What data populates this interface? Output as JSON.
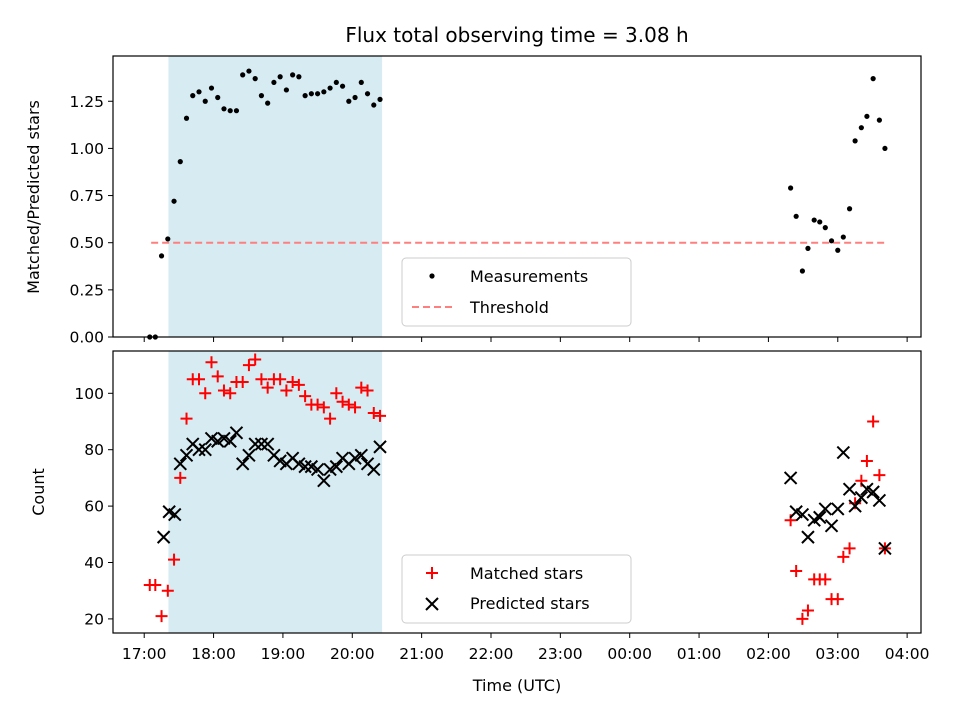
{
  "chart_data": {
    "type": "scatter",
    "title": "Flux total observing time = 3.08 h",
    "xlabel": "Time (UTC)",
    "x_unit": "hours since 17:00 UTC",
    "xlim": [
      -0.45,
      11.2
    ],
    "x_ticks": [
      {
        "value": 0,
        "label": "17:00"
      },
      {
        "value": 1,
        "label": "18:00"
      },
      {
        "value": 2,
        "label": "19:00"
      },
      {
        "value": 3,
        "label": "20:00"
      },
      {
        "value": 4,
        "label": "21:00"
      },
      {
        "value": 5,
        "label": "22:00"
      },
      {
        "value": 6,
        "label": "23:00"
      },
      {
        "value": 7,
        "label": "00:00"
      },
      {
        "value": 8,
        "label": "01:00"
      },
      {
        "value": 9,
        "label": "02:00"
      },
      {
        "value": 10,
        "label": "03:00"
      },
      {
        "value": 11,
        "label": "04:00"
      }
    ],
    "shaded_interval": [
      0.35,
      3.43
    ],
    "top_panel": {
      "ylabel": "Matched/Predicted stars",
      "ylim": [
        0,
        1.49
      ],
      "y_ticks": [
        "0.00",
        "0.25",
        "0.50",
        "0.75",
        "1.00",
        "1.25"
      ],
      "y_tick_values": [
        0,
        0.25,
        0.5,
        0.75,
        1.0,
        1.25
      ],
      "threshold": {
        "value": 0.5,
        "x_range": [
          0.1,
          10.7
        ],
        "color": "#ff7f7f"
      },
      "legend": {
        "placement": "lower center",
        "items": [
          "Measurements",
          "Threshold"
        ]
      },
      "series": [
        {
          "name": "Measurements",
          "marker": "dot",
          "color": "#000000",
          "x": [
            0.08,
            0.16,
            0.25,
            0.34,
            0.43,
            0.52,
            0.61,
            0.7,
            0.79,
            0.88,
            0.97,
            1.06,
            1.15,
            1.24,
            1.33,
            1.42,
            1.51,
            1.6,
            1.69,
            1.78,
            1.87,
            1.96,
            2.05,
            2.14,
            2.23,
            2.32,
            2.41,
            2.5,
            2.59,
            2.68,
            2.77,
            2.86,
            2.95,
            3.04,
            3.13,
            3.22,
            3.31,
            3.4,
            9.32,
            9.4,
            9.49,
            9.57,
            9.66,
            9.74,
            9.82,
            9.91,
            10.0,
            10.08,
            10.17,
            10.25,
            10.34,
            10.42,
            10.51,
            10.6,
            10.68
          ],
          "y": [
            0.0,
            0.0,
            0.43,
            0.52,
            0.72,
            0.93,
            1.16,
            1.28,
            1.3,
            1.25,
            1.32,
            1.27,
            1.21,
            1.2,
            1.2,
            1.39,
            1.41,
            1.37,
            1.28,
            1.24,
            1.35,
            1.38,
            1.31,
            1.39,
            1.38,
            1.28,
            1.29,
            1.29,
            1.3,
            1.32,
            1.35,
            1.33,
            1.25,
            1.27,
            1.35,
            1.29,
            1.23,
            1.26,
            0.79,
            0.64,
            0.35,
            0.47,
            0.62,
            0.61,
            0.58,
            0.51,
            0.46,
            0.53,
            0.68,
            1.04,
            1.11,
            1.17,
            1.37,
            1.15,
            1.0
          ]
        }
      ]
    },
    "bottom_panel": {
      "ylabel": "Count",
      "ylim": [
        15,
        115
      ],
      "y_ticks": [
        "20",
        "40",
        "60",
        "80",
        "100"
      ],
      "y_tick_values": [
        20,
        40,
        60,
        80,
        100
      ],
      "legend": {
        "placement": "lower center",
        "items": [
          "Matched stars",
          "Predicted stars"
        ]
      },
      "series": [
        {
          "name": "Matched stars",
          "marker": "plus",
          "color": "#ff0000",
          "x": [
            0.08,
            0.16,
            0.25,
            0.34,
            0.43,
            0.52,
            0.61,
            0.7,
            0.79,
            0.88,
            0.97,
            1.06,
            1.15,
            1.24,
            1.33,
            1.42,
            1.51,
            1.6,
            1.69,
            1.78,
            1.87,
            1.96,
            2.05,
            2.14,
            2.23,
            2.32,
            2.41,
            2.5,
            2.59,
            2.68,
            2.77,
            2.86,
            2.95,
            3.04,
            3.13,
            3.22,
            3.31,
            3.4,
            9.32,
            9.4,
            9.49,
            9.57,
            9.66,
            9.74,
            9.82,
            9.91,
            10.0,
            10.08,
            10.17,
            10.25,
            10.34,
            10.42,
            10.51,
            10.6,
            10.68
          ],
          "y": [
            32,
            32,
            21,
            30,
            41,
            70,
            91,
            105,
            105,
            100,
            111,
            106,
            101,
            100,
            104,
            104,
            110,
            112,
            105,
            102,
            105,
            105,
            101,
            104,
            103,
            99,
            96,
            96,
            95,
            91,
            100,
            97,
            96,
            95,
            102,
            101,
            93,
            92,
            55,
            37,
            20,
            23,
            34,
            34,
            34,
            27,
            27,
            42,
            45,
            61,
            69,
            76,
            90,
            71,
            45
          ]
        },
        {
          "name": "Predicted stars",
          "marker": "x",
          "color": "#000000",
          "x": [
            0.28,
            0.36,
            0.44,
            0.52,
            0.61,
            0.7,
            0.79,
            0.88,
            0.97,
            1.06,
            1.15,
            1.24,
            1.33,
            1.42,
            1.51,
            1.6,
            1.69,
            1.78,
            1.87,
            1.96,
            2.05,
            2.14,
            2.23,
            2.32,
            2.41,
            2.5,
            2.59,
            2.68,
            2.77,
            2.86,
            2.95,
            3.04,
            3.13,
            3.22,
            3.31,
            3.4,
            9.32,
            9.4,
            9.49,
            9.57,
            9.66,
            9.74,
            9.82,
            9.91,
            10.0,
            10.08,
            10.17,
            10.25,
            10.34,
            10.42,
            10.51,
            10.6,
            10.68
          ],
          "y": [
            49,
            58,
            57,
            75,
            78,
            82,
            80,
            80,
            84,
            83,
            84,
            83,
            86,
            75,
            78,
            82,
            82,
            82,
            78,
            76,
            75,
            77,
            75,
            74,
            74,
            73,
            69,
            73,
            74,
            77,
            75,
            77,
            78,
            75,
            73,
            81,
            70,
            58,
            57,
            49,
            55,
            56,
            59,
            53,
            59,
            79,
            66,
            60,
            63,
            66,
            65,
            62,
            45
          ]
        }
      ]
    }
  }
}
